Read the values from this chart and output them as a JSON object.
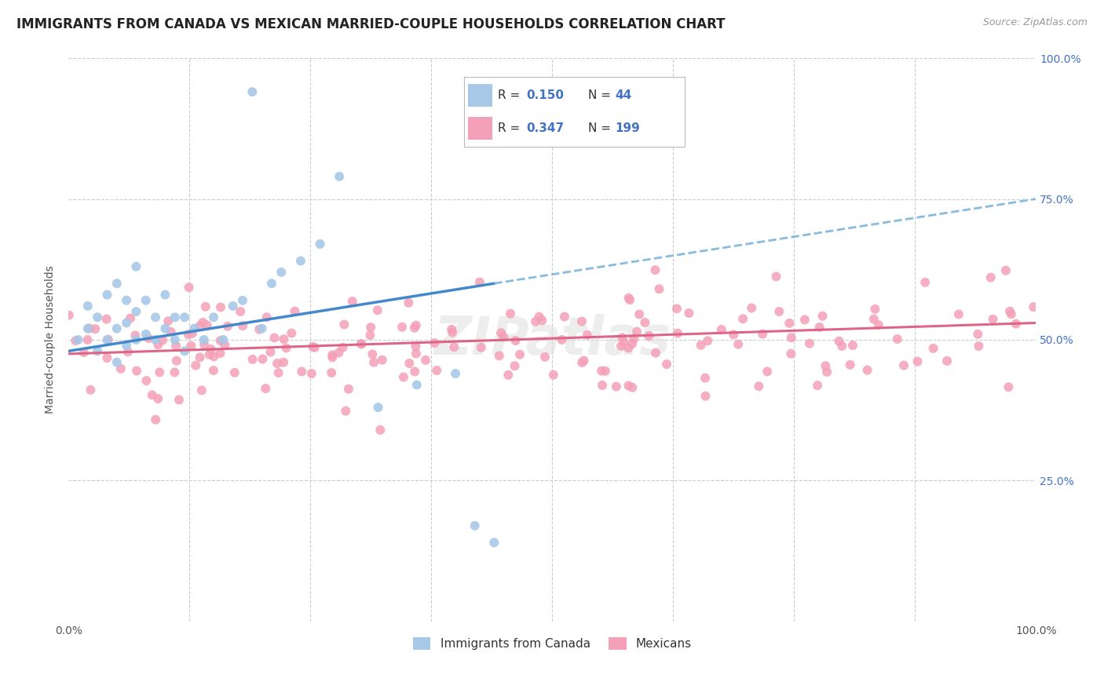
{
  "title": "IMMIGRANTS FROM CANADA VS MEXICAN MARRIED-COUPLE HOUSEHOLDS CORRELATION CHART",
  "source": "Source: ZipAtlas.com",
  "ylabel": "Married-couple Households",
  "canada_R": 0.15,
  "canada_N": 44,
  "mexican_R": 0.347,
  "mexican_N": 199,
  "canada_color": "#a8c8e8",
  "canada_line_color": "#4488cc",
  "canada_line_dash_color": "#88bbdd",
  "mexican_color": "#f4a0b8",
  "mexican_line_color": "#dd6688",
  "background_color": "#ffffff",
  "grid_color": "#cccccc",
  "title_fontsize": 12,
  "axis_label_fontsize": 10,
  "tick_fontsize": 10,
  "watermark": "ZIPatlas",
  "watermark_color": "#dddddd"
}
